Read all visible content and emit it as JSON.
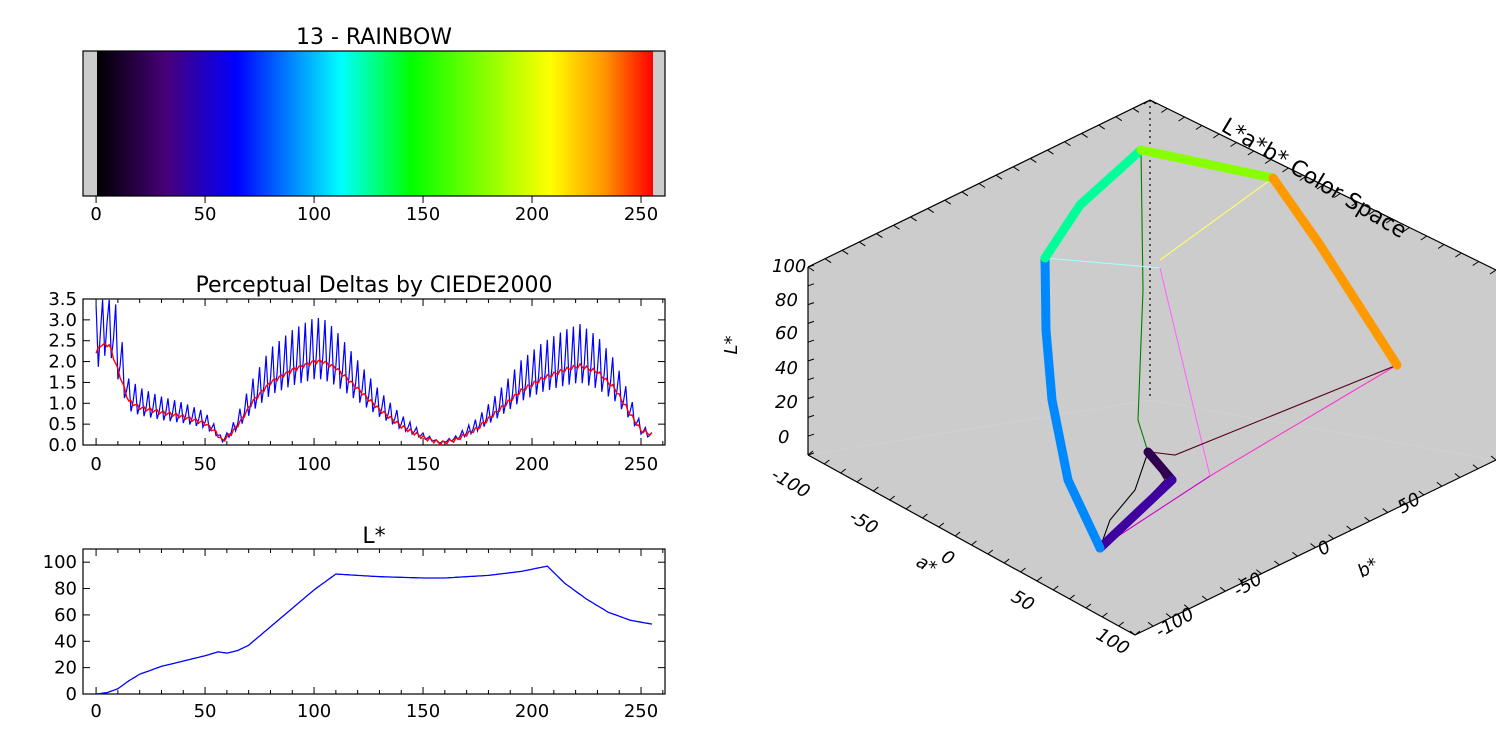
{
  "chart_data": [
    {
      "type": "colorbar",
      "title": "13 - RAINBOW",
      "xlim": [
        -6,
        261
      ],
      "xticks": [
        0,
        50,
        100,
        150,
        200,
        250
      ],
      "gradient_stops": [
        {
          "at": 0,
          "color": "#000000"
        },
        {
          "at": 32,
          "color": "#47007a"
        },
        {
          "at": 64,
          "color": "#0000ff"
        },
        {
          "at": 112,
          "color": "#00ffff"
        },
        {
          "at": 144,
          "color": "#00ff00"
        },
        {
          "at": 208,
          "color": "#ffff00"
        },
        {
          "at": 232,
          "color": "#ff9900"
        },
        {
          "at": 255,
          "color": "#ff0000"
        }
      ],
      "out_of_range_color": "#cccccc"
    },
    {
      "type": "line",
      "title": "Perceptual Deltas by CIEDE2000",
      "xlim": [
        -6,
        261
      ],
      "ylim": [
        0,
        3.5
      ],
      "xticks": [
        0,
        50,
        100,
        150,
        200,
        250
      ],
      "yticks": [
        "0.0",
        "0.5",
        "1.0",
        "1.5",
        "2.0",
        "2.5",
        "3.0",
        "3.5"
      ],
      "series": [
        {
          "color": "#0000ff",
          "style": "spiky",
          "x": [
            0,
            2,
            6,
            10,
            15,
            20,
            30,
            40,
            50,
            55,
            58,
            62,
            66,
            72,
            80,
            90,
            100,
            104,
            110,
            120,
            130,
            140,
            150,
            158,
            165,
            175,
            185,
            195,
            205,
            215,
            222,
            230,
            238,
            245,
            250,
            255
          ],
          "y": [
            2.3,
            2.7,
            3.0,
            2.1,
            1.1,
            0.95,
            0.8,
            0.7,
            0.55,
            0.3,
            0.1,
            0.3,
            0.6,
            1.1,
            1.6,
            1.9,
            2.1,
            2.1,
            1.9,
            1.4,
            0.9,
            0.5,
            0.2,
            0.05,
            0.15,
            0.45,
            0.9,
            1.4,
            1.7,
            1.9,
            2.0,
            1.8,
            1.4,
            0.8,
            0.35,
            0.2
          ]
        },
        {
          "color": "#ff0000",
          "style": "smooth",
          "x": [
            0,
            2,
            6,
            10,
            15,
            20,
            30,
            40,
            50,
            55,
            58,
            62,
            66,
            72,
            80,
            90,
            100,
            104,
            110,
            120,
            130,
            140,
            150,
            158,
            165,
            175,
            185,
            195,
            205,
            215,
            222,
            230,
            238,
            245,
            250,
            255
          ],
          "y": [
            2.2,
            2.4,
            2.4,
            1.8,
            1.05,
            0.9,
            0.78,
            0.68,
            0.52,
            0.3,
            0.1,
            0.28,
            0.55,
            1.05,
            1.5,
            1.8,
            2.0,
            2.0,
            1.85,
            1.35,
            0.85,
            0.45,
            0.18,
            0.05,
            0.12,
            0.4,
            0.85,
            1.3,
            1.6,
            1.8,
            1.9,
            1.75,
            1.35,
            0.75,
            0.35,
            0.25
          ]
        }
      ]
    },
    {
      "type": "line",
      "title": "L*",
      "xlim": [
        -6,
        261
      ],
      "ylim": [
        0,
        110
      ],
      "xticks": [
        0,
        50,
        100,
        150,
        200,
        250
      ],
      "yticks": [
        0,
        20,
        40,
        60,
        80,
        100
      ],
      "series": [
        {
          "color": "#0000ff",
          "x": [
            0,
            5,
            10,
            15,
            20,
            30,
            40,
            50,
            56,
            60,
            65,
            70,
            80,
            90,
            100,
            110,
            130,
            150,
            160,
            180,
            195,
            207,
            215,
            225,
            235,
            245,
            255
          ],
          "y": [
            0,
            1,
            4,
            10,
            15,
            21,
            25,
            29,
            32,
            31,
            33,
            37,
            51,
            65,
            79,
            91,
            89,
            88,
            88,
            90,
            93,
            97,
            84,
            72,
            62,
            56,
            53
          ]
        }
      ]
    },
    {
      "type": "scatter3d",
      "title": "L*a*b* Color Space",
      "xlabel": "a*",
      "ylabel": "b*",
      "zlabel": "L*",
      "a_ticks": [
        "-100",
        "-50",
        "0",
        "50",
        "100"
      ],
      "b_ticks": [
        "-100",
        "-50",
        "0",
        "50"
      ],
      "l_ticks": [
        "0",
        "20",
        "40",
        "60",
        "80",
        "100"
      ],
      "background": "#cccccc"
    }
  ]
}
